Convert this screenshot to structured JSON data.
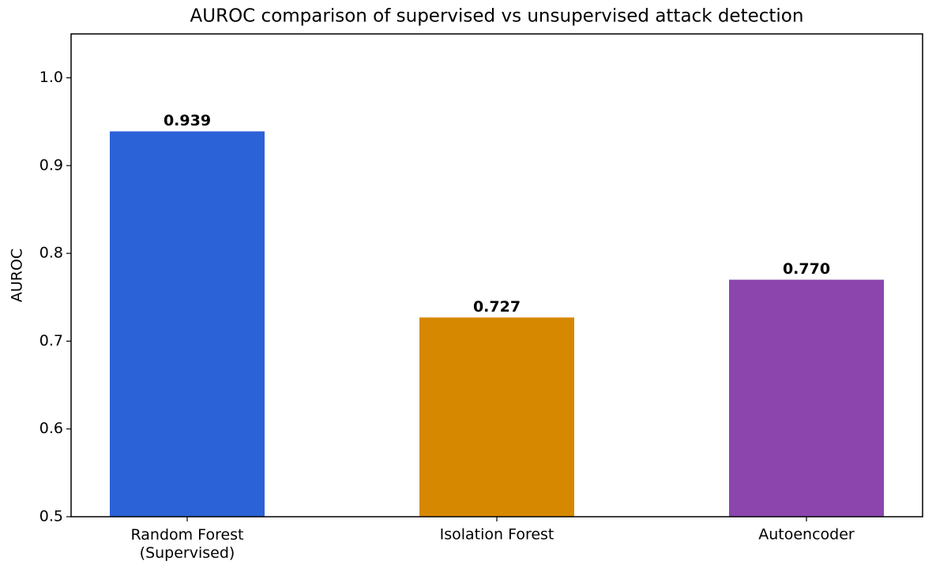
{
  "chart_data": {
    "type": "bar",
    "title": "AUROC comparison of supervised vs unsupervised attack detection",
    "y_label": "AUROC",
    "categories": [
      "Random Forest\n(Supervised)",
      "Isolation Forest",
      "Autoencoder"
    ],
    "values": [
      0.939,
      0.727,
      0.77
    ],
    "value_labels": [
      "0.939",
      "0.727",
      "0.770"
    ],
    "colors": [
      "#2c62d8",
      "#d68800",
      "#8b45ad"
    ],
    "ylim": [
      0.5,
      1.05
    ],
    "yticks": [
      0.5,
      0.6,
      0.7,
      0.8,
      0.9,
      {
        "value": 1,
        "label": "1.0"
      }
    ],
    "grid": false
  }
}
